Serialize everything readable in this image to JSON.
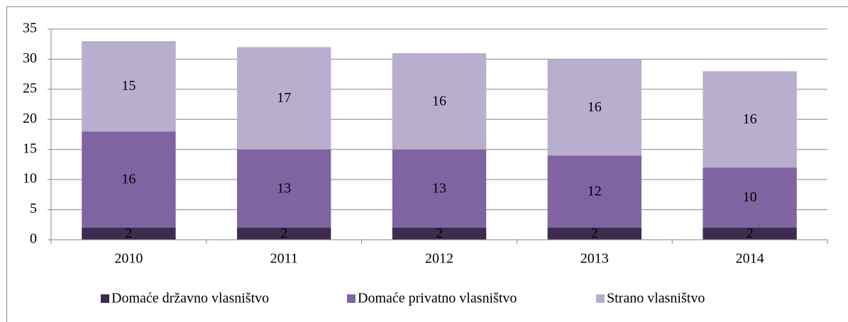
{
  "chart_data": {
    "type": "stacked_bar",
    "categories": [
      "2010",
      "2011",
      "2012",
      "2013",
      "2014"
    ],
    "series": [
      {
        "name": "Domaće državno vlasništvo",
        "color": "#3d2c4f",
        "values": [
          2,
          2,
          2,
          2,
          2
        ]
      },
      {
        "name": "Domaće privatno vlasništvo",
        "color": "#8064a2",
        "values": [
          16,
          13,
          13,
          12,
          10
        ]
      },
      {
        "name": "Strano vlasništvo",
        "color": "#b9aece",
        "values": [
          15,
          17,
          16,
          16,
          16
        ]
      }
    ],
    "ylim": [
      0,
      35
    ],
    "yticks": [
      0,
      5,
      10,
      15,
      20,
      25,
      30,
      35
    ],
    "grid": true,
    "legend": "bottom"
  }
}
